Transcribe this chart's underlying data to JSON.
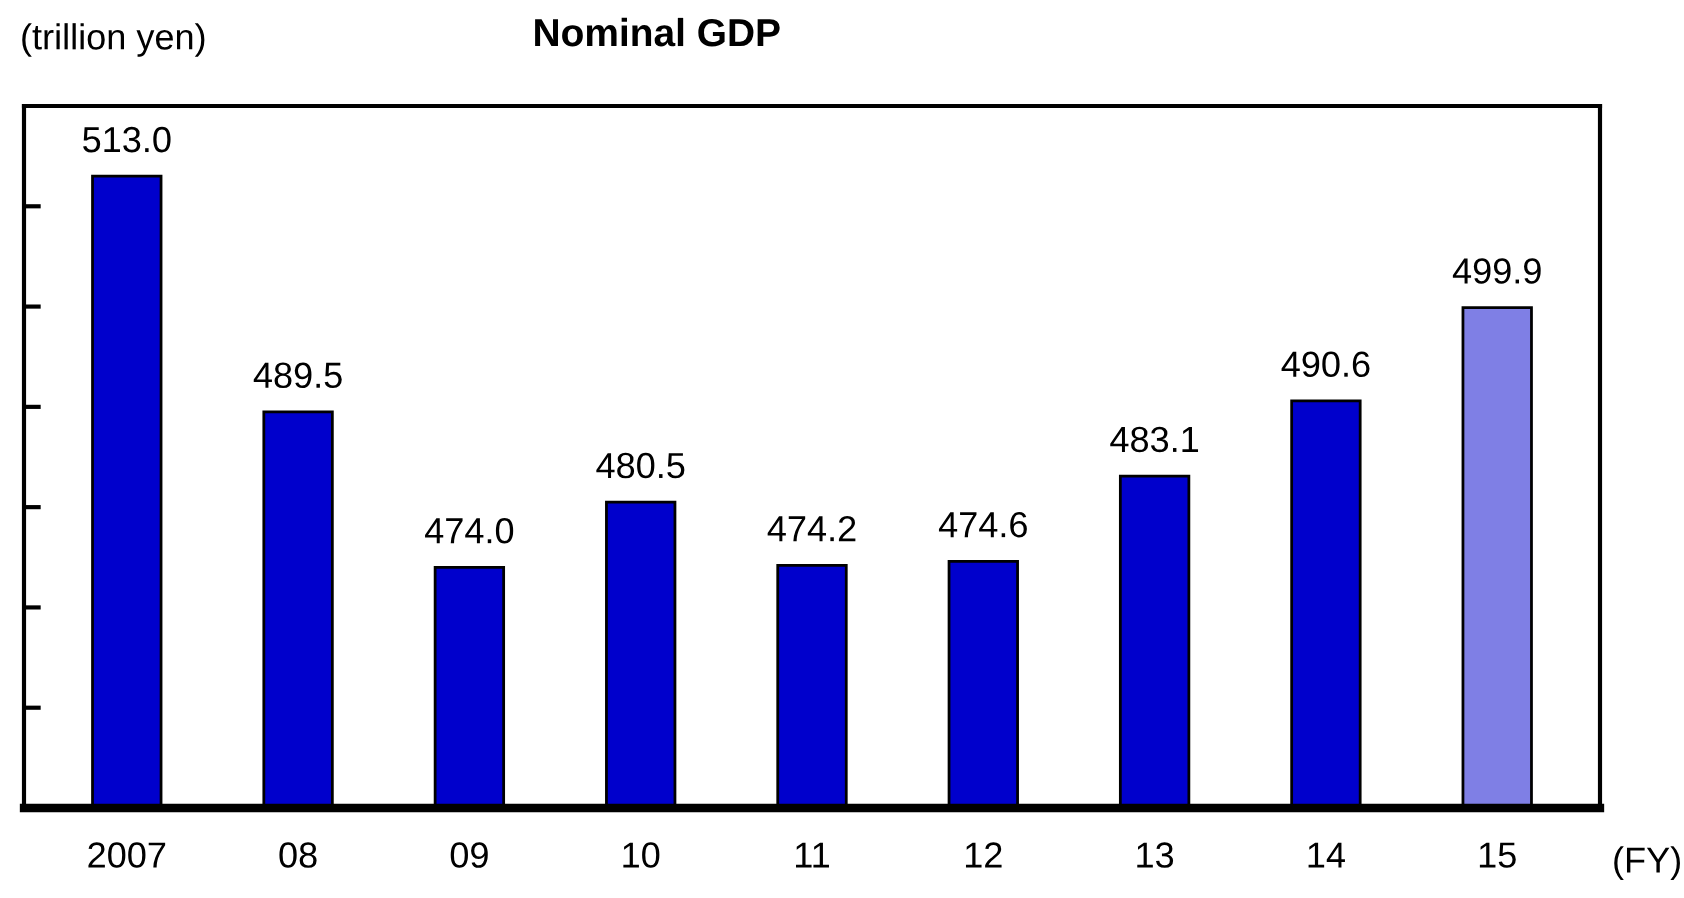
{
  "chart_data": {
    "type": "bar",
    "title": "Nominal GDP",
    "ylabel": "(trillion yen)",
    "xlabel": "(FY)",
    "categories": [
      "2007",
      "08",
      "09",
      "10",
      "11",
      "12",
      "13",
      "14",
      "15"
    ],
    "values": [
      513.0,
      489.5,
      474.0,
      480.5,
      474.2,
      474.6,
      483.1,
      490.6,
      499.9
    ],
    "colors": [
      "#0000cc",
      "#0000cc",
      "#0000cc",
      "#0000cc",
      "#0000cc",
      "#0000cc",
      "#0000cc",
      "#0000cc",
      "#7f7fe5"
    ],
    "ylim": [
      450,
      520
    ],
    "yticks": [
      {
        "value": 460,
        "label": null
      },
      {
        "value": 470,
        "label": null
      },
      {
        "value": 480,
        "label": null
      },
      {
        "value": 490,
        "label": null
      },
      {
        "value": 500,
        "label": null
      },
      {
        "value": 510,
        "label": null
      }
    ],
    "value_labels": [
      "513.0",
      "489.5",
      "474.0",
      "480.5",
      "474.2",
      "474.6",
      "483.1",
      "490.6",
      "499.9"
    ],
    "grid": false,
    "legend": false
  }
}
